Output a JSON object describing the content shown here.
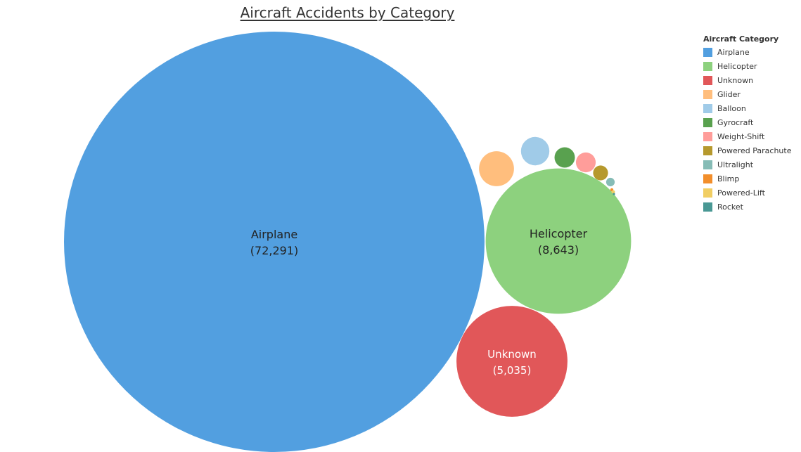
{
  "chart_data": {
    "type": "bubble",
    "title": "Aircraft Accidents by Category",
    "legend_title": "Aircraft Category",
    "legend_position": "right",
    "categories": [
      {
        "name": "Airplane",
        "value": 72291,
        "value_label": "(72,291)",
        "color": "#529fe0",
        "text_color": "#222222"
      },
      {
        "name": "Helicopter",
        "value": 8643,
        "value_label": "(8,643)",
        "color": "#8dd17e",
        "text_color": "#222222"
      },
      {
        "name": "Unknown",
        "value": 5035,
        "value_label": "(5,035)",
        "color": "#e15759",
        "text_color": "#ffffff"
      },
      {
        "name": "Glider",
        "value": 500,
        "value_label": "",
        "color": "#ffbe7d",
        "text_color": "#222222"
      },
      {
        "name": "Balloon",
        "value": 330,
        "value_label": "",
        "color": "#a0cbe8",
        "text_color": "#222222"
      },
      {
        "name": "Gyrocraft",
        "value": 170,
        "value_label": "",
        "color": "#59a14f",
        "text_color": "#222222"
      },
      {
        "name": "Weight-Shift",
        "value": 160,
        "value_label": "",
        "color": "#ff9d9a",
        "text_color": "#222222"
      },
      {
        "name": "Powered Parachute",
        "value": 91,
        "value_label": "",
        "color": "#b6992d",
        "text_color": "#222222"
      },
      {
        "name": "Ultralight",
        "value": 30,
        "value_label": "",
        "color": "#86bcb6",
        "text_color": "#222222"
      },
      {
        "name": "Blimp",
        "value": 4,
        "value_label": "",
        "color": "#f28e2b",
        "text_color": "#222222"
      },
      {
        "name": "Powered-Lift",
        "value": 5,
        "value_label": "",
        "color": "#f1ce63",
        "text_color": "#222222"
      },
      {
        "name": "Rocket",
        "value": 1,
        "value_label": "",
        "color": "#499894",
        "text_color": "#222222"
      }
    ]
  }
}
